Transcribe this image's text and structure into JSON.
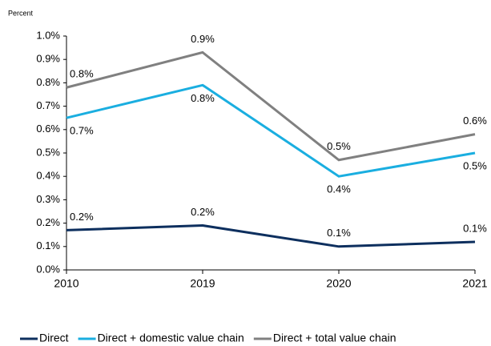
{
  "chart_data": {
    "type": "line",
    "y_axis_label": "Percent",
    "categories": [
      "2010",
      "2019",
      "2020",
      "2021"
    ],
    "series": [
      {
        "name": "Direct",
        "color": "#0d2f5e",
        "values": [
          0.17,
          0.19,
          0.1,
          0.12
        ],
        "value_labels": [
          "0.2%",
          "0.2%",
          "0.1%",
          "0.1%"
        ]
      },
      {
        "name": "Direct + domestic value chain",
        "color": "#1aaee0",
        "values": [
          0.65,
          0.79,
          0.4,
          0.5
        ],
        "value_labels": [
          "0.7%",
          "0.8%",
          "0.4%",
          "0.5%"
        ]
      },
      {
        "name": "Direct + total value chain",
        "color": "#808080",
        "values": [
          0.78,
          0.93,
          0.47,
          0.58
        ],
        "value_labels": [
          "0.8%",
          "0.9%",
          "0.5%",
          "0.6%"
        ]
      }
    ],
    "ylim": [
      0,
      1.0
    ],
    "yticks": [
      {
        "value": 0,
        "label": "0.0%"
      },
      {
        "value": 0.1,
        "label": "0.1%"
      },
      {
        "value": 0.2,
        "label": "0.2%"
      },
      {
        "value": 0.3,
        "label": "0.3%"
      },
      {
        "value": 0.4,
        "label": "0.4%"
      },
      {
        "value": 0.5,
        "label": "0.5%"
      },
      {
        "value": 0.6,
        "label": "0.6%"
      },
      {
        "value": 0.7,
        "label": "0.7%"
      },
      {
        "value": 0.8,
        "label": "0.8%"
      },
      {
        "value": 0.9,
        "label": "0.9%"
      },
      {
        "value": 1.0,
        "label": "1.0%"
      }
    ],
    "grid": false,
    "legend": "bottom"
  }
}
